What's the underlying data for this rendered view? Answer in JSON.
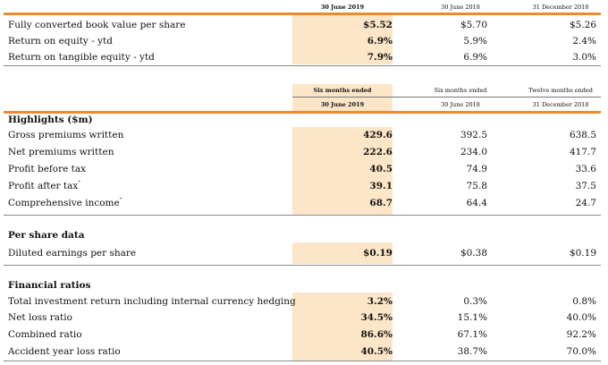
{
  "top_table": {
    "headers": [
      "30 June 2019",
      "30 June 2018",
      "31 December 2018"
    ],
    "rows": [
      {
        "label": "Fully converted book value per share",
        "v2019": "$5.52",
        "v2018": "$5.70",
        "vdec": "$5.26"
      },
      {
        "label": "Return on equity - ytd",
        "v2019": "6.9%",
        "v2018": "5.9%",
        "vdec": "2.4%"
      },
      {
        "label": "Return on tangible equity - ytd",
        "v2019": "7.9%",
        "v2018": "6.9%",
        "vdec": "3.0%"
      }
    ]
  },
  "main_table": {
    "headers": [
      {
        "line1": "Six months ended",
        "line2": "30 June 2019"
      },
      {
        "line1": "Six months ended",
        "line2": "30 June 2018"
      },
      {
        "line1": "Twelve months ended",
        "line2": "31 December 2018"
      }
    ],
    "sections": [
      {
        "title": "Highlights ($m)",
        "rows": [
          {
            "label": "Gross premiums written",
            "note": "",
            "v2019": "429.6",
            "v2018": "392.5",
            "vdec": "638.5"
          },
          {
            "label": "Net premiums written",
            "note": "",
            "v2019": "222.6",
            "v2018": "234.0",
            "vdec": "417.7"
          },
          {
            "label": "Profit before tax",
            "note": "",
            "v2019": "40.5",
            "v2018": "74.9",
            "vdec": "33.6"
          },
          {
            "label": "Profit after tax",
            "note": "*",
            "v2019": "39.1",
            "v2018": "75.8",
            "vdec": "37.5"
          },
          {
            "label": "Comprehensive income",
            "note": "*",
            "v2019": "68.7",
            "v2018": "64.4",
            "vdec": "24.7"
          }
        ]
      },
      {
        "title": "Per share data",
        "rows": [
          {
            "label": "Diluted earnings per share",
            "note": "",
            "v2019": "$0.19",
            "v2018": "$0.38",
            "vdec": "$0.19"
          }
        ]
      },
      {
        "title": "Financial ratios",
        "rows": [
          {
            "label": "Total investment return including internal currency hedging",
            "note": "",
            "v2019": "3.2%",
            "v2018": "0.3%",
            "vdec": "0.8%"
          },
          {
            "label": "Net loss ratio",
            "note": "",
            "v2019": "34.5%",
            "v2018": "15.1%",
            "vdec": "40.0%"
          },
          {
            "label": "Combined ratio",
            "note": "",
            "v2019": "86.6%",
            "v2018": "67.1%",
            "vdec": "92.2%"
          },
          {
            "label": "Accident year loss ratio",
            "note": "",
            "v2019": "40.5%",
            "v2018": "38.7%",
            "vdec": "70.0%"
          }
        ]
      }
    ]
  },
  "colors": {
    "accent_rule": "#ee8a2c",
    "highlight_fill": "#fde6c8"
  }
}
